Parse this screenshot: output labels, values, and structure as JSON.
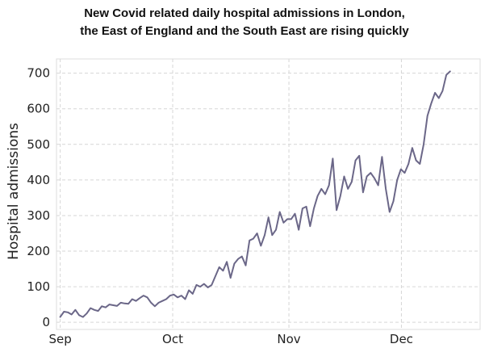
{
  "chart_data": {
    "type": "line",
    "title_lines": [
      "New Covid related daily hospital admissions in London,",
      "the East of England and the South East are rising quickly"
    ],
    "xlabel": "",
    "ylabel": "Hospital admissions",
    "ylim": [
      -20,
      740
    ],
    "y_ticks": [
      0,
      100,
      200,
      300,
      400,
      500,
      600,
      700
    ],
    "x_ticks": [
      {
        "date": "2020-09-01",
        "label": "Sep"
      },
      {
        "date": "2020-10-01",
        "label": "Oct"
      },
      {
        "date": "2020-11-01",
        "label": "Nov"
      },
      {
        "date": "2020-12-01",
        "label": "Dec"
      }
    ],
    "grid": true,
    "line_color": "#6b6788",
    "series": [
      {
        "name": "",
        "x_start": "2020-09-01",
        "x_end": "2020-12-14",
        "values": [
          15,
          30,
          28,
          22,
          35,
          20,
          15,
          25,
          40,
          35,
          32,
          45,
          42,
          50,
          48,
          46,
          55,
          53,
          52,
          65,
          60,
          68,
          75,
          70,
          55,
          45,
          55,
          60,
          65,
          75,
          78,
          70,
          75,
          65,
          90,
          80,
          105,
          100,
          108,
          98,
          105,
          130,
          155,
          145,
          170,
          125,
          165,
          178,
          185,
          160,
          230,
          235,
          250,
          215,
          245,
          295,
          245,
          260,
          310,
          280,
          290,
          290,
          305,
          260,
          320,
          325,
          270,
          320,
          355,
          375,
          360,
          385,
          460,
          315,
          355,
          410,
          375,
          395,
          455,
          468,
          365,
          410,
          420,
          405,
          385,
          465,
          375,
          310,
          340,
          400,
          430,
          420,
          445,
          490,
          455,
          445,
          500,
          580,
          615,
          645,
          630,
          650,
          695,
          705
        ]
      }
    ]
  }
}
